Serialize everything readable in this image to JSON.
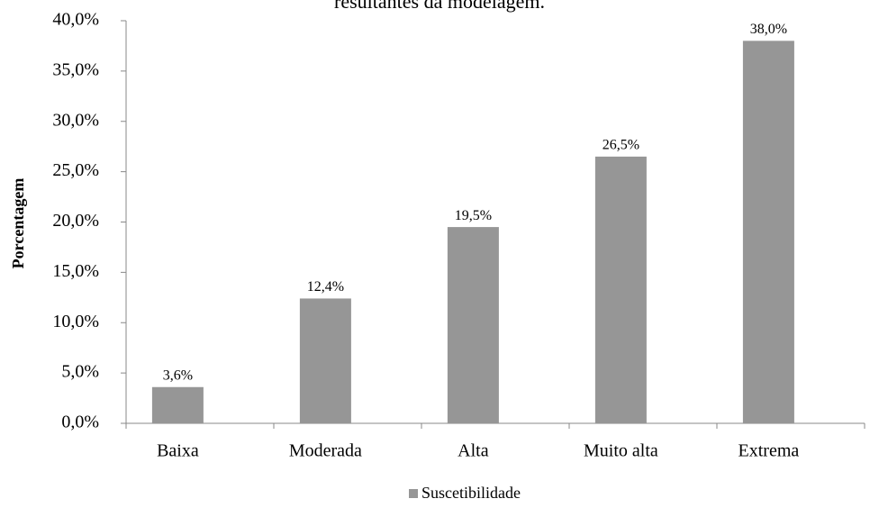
{
  "chart_data": {
    "type": "bar",
    "title": "resultantes da modelagem.",
    "y_label": "Porcentagem",
    "categories": [
      "Baixa",
      "Moderada",
      "Alta",
      "Muito alta",
      "Extrema"
    ],
    "series": [
      {
        "name": "Suscetibilidade",
        "color": "#969696",
        "values": [
          3.6,
          12.4,
          19.5,
          26.5,
          38.0
        ],
        "value_labels": [
          "3,6%",
          "12,4%",
          "19,5%",
          "26,5%",
          "38,0%"
        ]
      }
    ],
    "ylim": [
      0,
      40
    ],
    "yticks": [
      {
        "value": 0,
        "label": "0,0%"
      },
      {
        "value": 5,
        "label": "5,0%"
      },
      {
        "value": 10,
        "label": "10,0%"
      },
      {
        "value": 15,
        "label": "15,0%"
      },
      {
        "value": 20,
        "label": "20,0%"
      },
      {
        "value": 25,
        "label": "25,0%"
      },
      {
        "value": 30,
        "label": "30,0%"
      },
      {
        "value": 35,
        "label": "35,0%"
      },
      {
        "value": 40,
        "label": "40,0%"
      }
    ],
    "grid": false,
    "legend": "bottom"
  }
}
